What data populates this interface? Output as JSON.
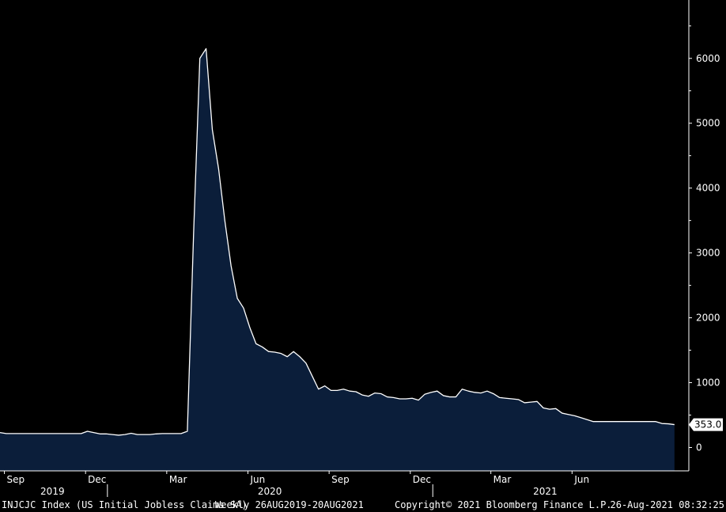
{
  "chart_data": {
    "type": "area",
    "ticker": "INJCJC Index (US Initial Jobless Claims SA)",
    "frequency": "Weekly 26AUG2019-20AUG2021",
    "copyright": "Copyright© 2021 Bloomberg Finance L.P.",
    "timestamp": "26-Aug-2021 08:32:25",
    "last_value_label": "353.0",
    "y_ticks": [
      "0",
      "1000",
      "2000",
      "3000",
      "4000",
      "5000",
      "6000"
    ],
    "ylim": [
      -360,
      6900
    ],
    "x_ticks": [
      {
        "label": "Sep",
        "week": 0.7
      },
      {
        "label": "Dec",
        "week": 13.7
      },
      {
        "label": "Mar",
        "week": 26.7
      },
      {
        "label": "Jun",
        "week": 39.7
      },
      {
        "label": "Sep",
        "week": 52.7
      },
      {
        "label": "Dec",
        "week": 65.7
      },
      {
        "label": "Mar",
        "week": 78.6
      },
      {
        "label": "Jun",
        "week": 91.6
      }
    ],
    "years": [
      {
        "label": "2019",
        "week": 8.4
      },
      {
        "label": "2020",
        "week": 43.2
      },
      {
        "label": "2021",
        "week": 87.3
      }
    ],
    "year_separators": [
      17.2,
      69.3
    ],
    "xlim": [
      0,
      110.3
    ],
    "values": [
      230,
      215,
      215,
      215,
      215,
      215,
      215,
      215,
      215,
      215,
      215,
      215,
      215,
      215,
      250,
      230,
      210,
      210,
      200,
      190,
      200,
      220,
      200,
      200,
      200,
      210,
      215,
      215,
      215,
      215,
      250,
      3300,
      6000,
      6150,
      4900,
      4300,
      3500,
      2800,
      2300,
      2150,
      1850,
      1600,
      1550,
      1480,
      1470,
      1450,
      1400,
      1480,
      1400,
      1300,
      1100,
      900,
      950,
      880,
      880,
      900,
      870,
      860,
      810,
      790,
      840,
      830,
      780,
      770,
      750,
      750,
      760,
      730,
      820,
      850,
      870,
      800,
      780,
      780,
      900,
      870,
      850,
      840,
      870,
      830,
      770,
      760,
      750,
      740,
      690,
      700,
      710,
      610,
      590,
      600,
      530,
      510,
      490,
      460,
      430,
      400,
      400,
      400,
      400,
      400,
      400,
      400,
      400,
      400,
      400,
      400,
      370,
      365,
      353
    ],
    "series": [
      {
        "name": "INJCJC Index (US Initial Jobless Claims SA)",
        "fill": "#0b1e3a",
        "stroke": "#ffffff"
      }
    ]
  }
}
